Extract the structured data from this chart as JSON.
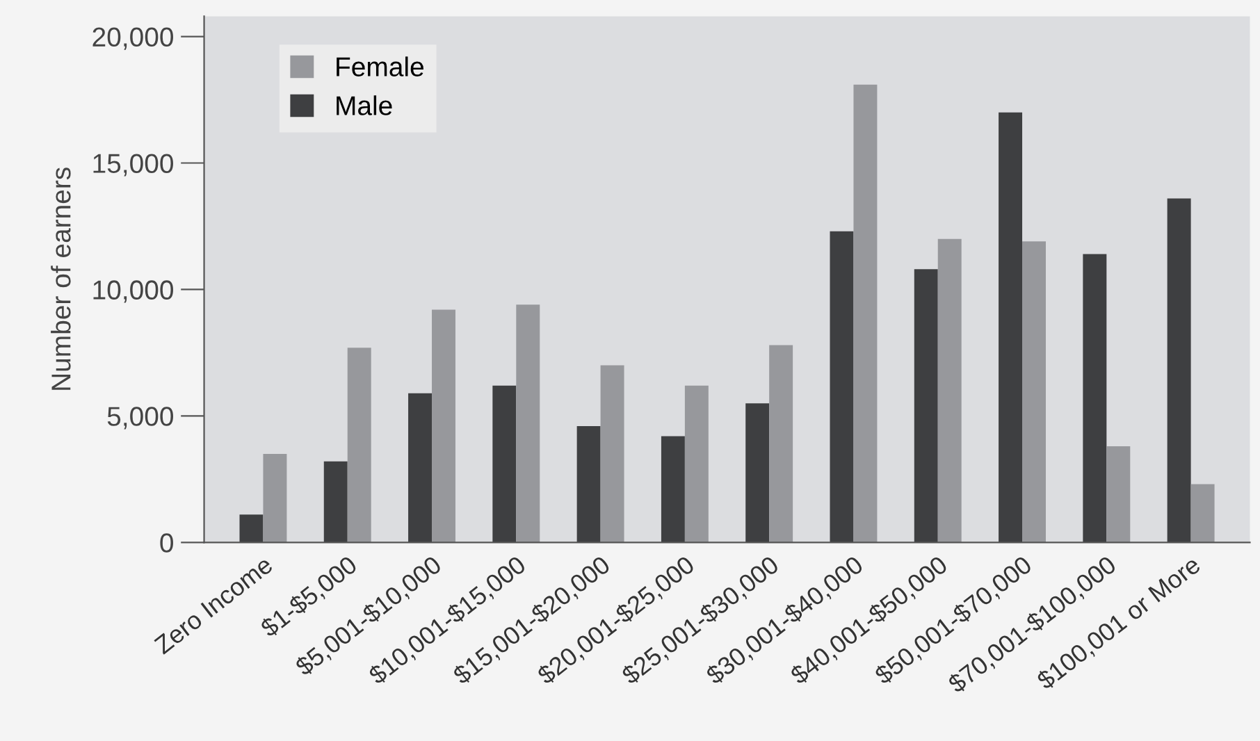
{
  "chart_data": {
    "type": "bar",
    "ylabel": "Number of earners",
    "categories": [
      "Zero Income",
      "$1-$5,000",
      "$5,001-$10,000",
      "$10,001-$15,000",
      "$15,001-$20,000",
      "$20,001-$25,000",
      "$25,001-$30,000",
      "$30,001-$40,000",
      "$40,001-$50,000",
      "$50,001-$70,000",
      "$70,001-$100,000",
      "$100,001 or More"
    ],
    "series": [
      {
        "name": "Male",
        "color": "#3e3f41",
        "values": [
          1100,
          3200,
          5900,
          6200,
          4600,
          4200,
          5500,
          12300,
          10800,
          17000,
          11400,
          13600
        ]
      },
      {
        "name": "Female",
        "color": "#97989c",
        "values": [
          3500,
          7700,
          9200,
          9400,
          7000,
          6200,
          7800,
          18100,
          12000,
          11900,
          3800,
          2300
        ]
      }
    ],
    "ylim": [
      0,
      20800
    ],
    "yticks": [
      {
        "value": 0,
        "label": "0"
      },
      {
        "value": 5000,
        "label": "5,000"
      },
      {
        "value": 10000,
        "label": "10,000"
      },
      {
        "value": 15000,
        "label": "15,000"
      },
      {
        "value": 20000,
        "label": "20,000"
      }
    ],
    "grid": false,
    "legend": "top left"
  }
}
